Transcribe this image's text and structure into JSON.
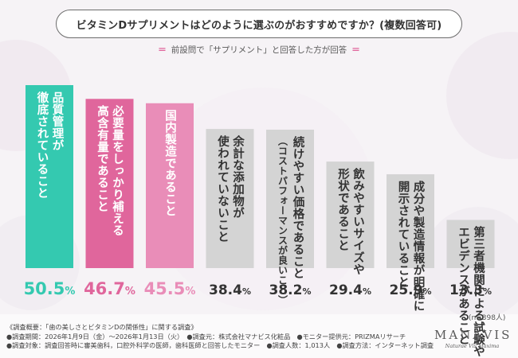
{
  "title": "ビタミンDサプリメントはどのように選ぶのがおすすめですか？(複数回答可)",
  "subtitle": "前設問で「サプリメント」と回答した方が回答",
  "subtitle_mark": "＝",
  "n_note": "(n=398人)",
  "percent_sign": "%",
  "footer": [
    "《調査概要：「歯の美しさとビタミンDの関係性」に関する調査》",
    "●調査期間：2026年1月9日（金）～2026年1月13日（火）　●調査元：株式会社マナビス化粧品　●モニター提供元：PRIZMAリサーチ",
    "●調査対象：調査回答時に審美歯科，口腔外科学の医師，歯科医師と回答したモニター　●調査人数：1,013人　●調査方法：インターネット調査"
  ],
  "brand": {
    "logo": "MANAVIS",
    "tagline": "Naturae Vis Maxima"
  },
  "colors": {
    "teal": "#34c9b0",
    "pink": "#e0669c",
    "lightpink": "#e98db8",
    "gray": "#d4d4d4",
    "text": "#333333"
  },
  "chart_data": {
    "type": "bar",
    "ylim": [
      0,
      60
    ],
    "categories": [
      [
        "品質管理が",
        "徹底されていること"
      ],
      [
        "必要量をしっかり補える",
        "高含有量であること"
      ],
      [
        "国内製造であること"
      ],
      [
        "余計な添加物が",
        "使われていないこと"
      ],
      [
        "続けやすい価格であること",
        "（コストパフォーマンスが良いこと）"
      ],
      [
        "飲みやすいサイズや",
        "形状であること"
      ],
      [
        "成分や製造情報が明確に",
        "開示されていること"
      ],
      [
        "第三者機関による試験や",
        "エビデンスがあること"
      ]
    ],
    "values": [
      50.5,
      46.7,
      45.5,
      38.4,
      38.2,
      29.4,
      25.9,
      13.3
    ],
    "value_labels": [
      "50.5",
      "46.7",
      "45.5",
      "38.4",
      "38.2",
      "29.4",
      "25.9",
      "13.3"
    ],
    "bar_colors": [
      "#34c9b0",
      "#e0669c",
      "#e98db8",
      "#d4d4d4",
      "#d4d4d4",
      "#d4d4d4",
      "#d4d4d4",
      "#d4d4d4"
    ],
    "label_colors": [
      "#ffffff",
      "#ffffff",
      "#ffffff",
      "#333333",
      "#333333",
      "#333333",
      "#333333",
      "#333333"
    ],
    "value_colors": [
      "#34c9b0",
      "#e0669c",
      "#e98db8",
      "#333333",
      "#333333",
      "#333333",
      "#333333",
      "#333333"
    ]
  }
}
